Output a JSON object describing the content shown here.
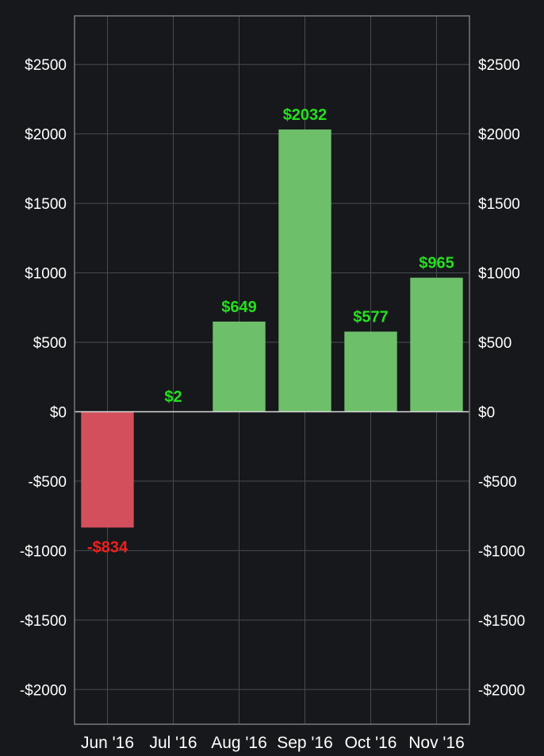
{
  "chart_data": {
    "type": "bar",
    "categories": [
      "Jun '16",
      "Jul '16",
      "Aug '16",
      "Sep '16",
      "Oct '16",
      "Nov '16"
    ],
    "values": [
      -834,
      2,
      649,
      2032,
      577,
      965
    ],
    "data_labels": [
      "-$834",
      "$2",
      "$649",
      "$2032",
      "$577",
      "$965"
    ],
    "ylim": [
      -2250,
      2850
    ],
    "yticks": [
      -2000,
      -1500,
      -1000,
      -500,
      0,
      500,
      1000,
      1500,
      2000,
      2500
    ],
    "ytick_labels": [
      "-$2000",
      "-$1500",
      "-$1000",
      "-$500",
      "$0",
      "$500",
      "$1000",
      "$1500",
      "$2000",
      "$2500"
    ],
    "y_axis_sides": [
      "left",
      "right"
    ],
    "grid": true,
    "legend": "none",
    "colors": {
      "background": "#17181c",
      "grid": "#4a4b50",
      "frame": "#77787c",
      "zero_line": "#d8d8d8",
      "axis_text": "#ffffff",
      "positive_bar": "#6ebf69",
      "negative_bar": "#d34f5c",
      "positive_label": "#25e01f",
      "negative_label": "#f0201e"
    }
  }
}
